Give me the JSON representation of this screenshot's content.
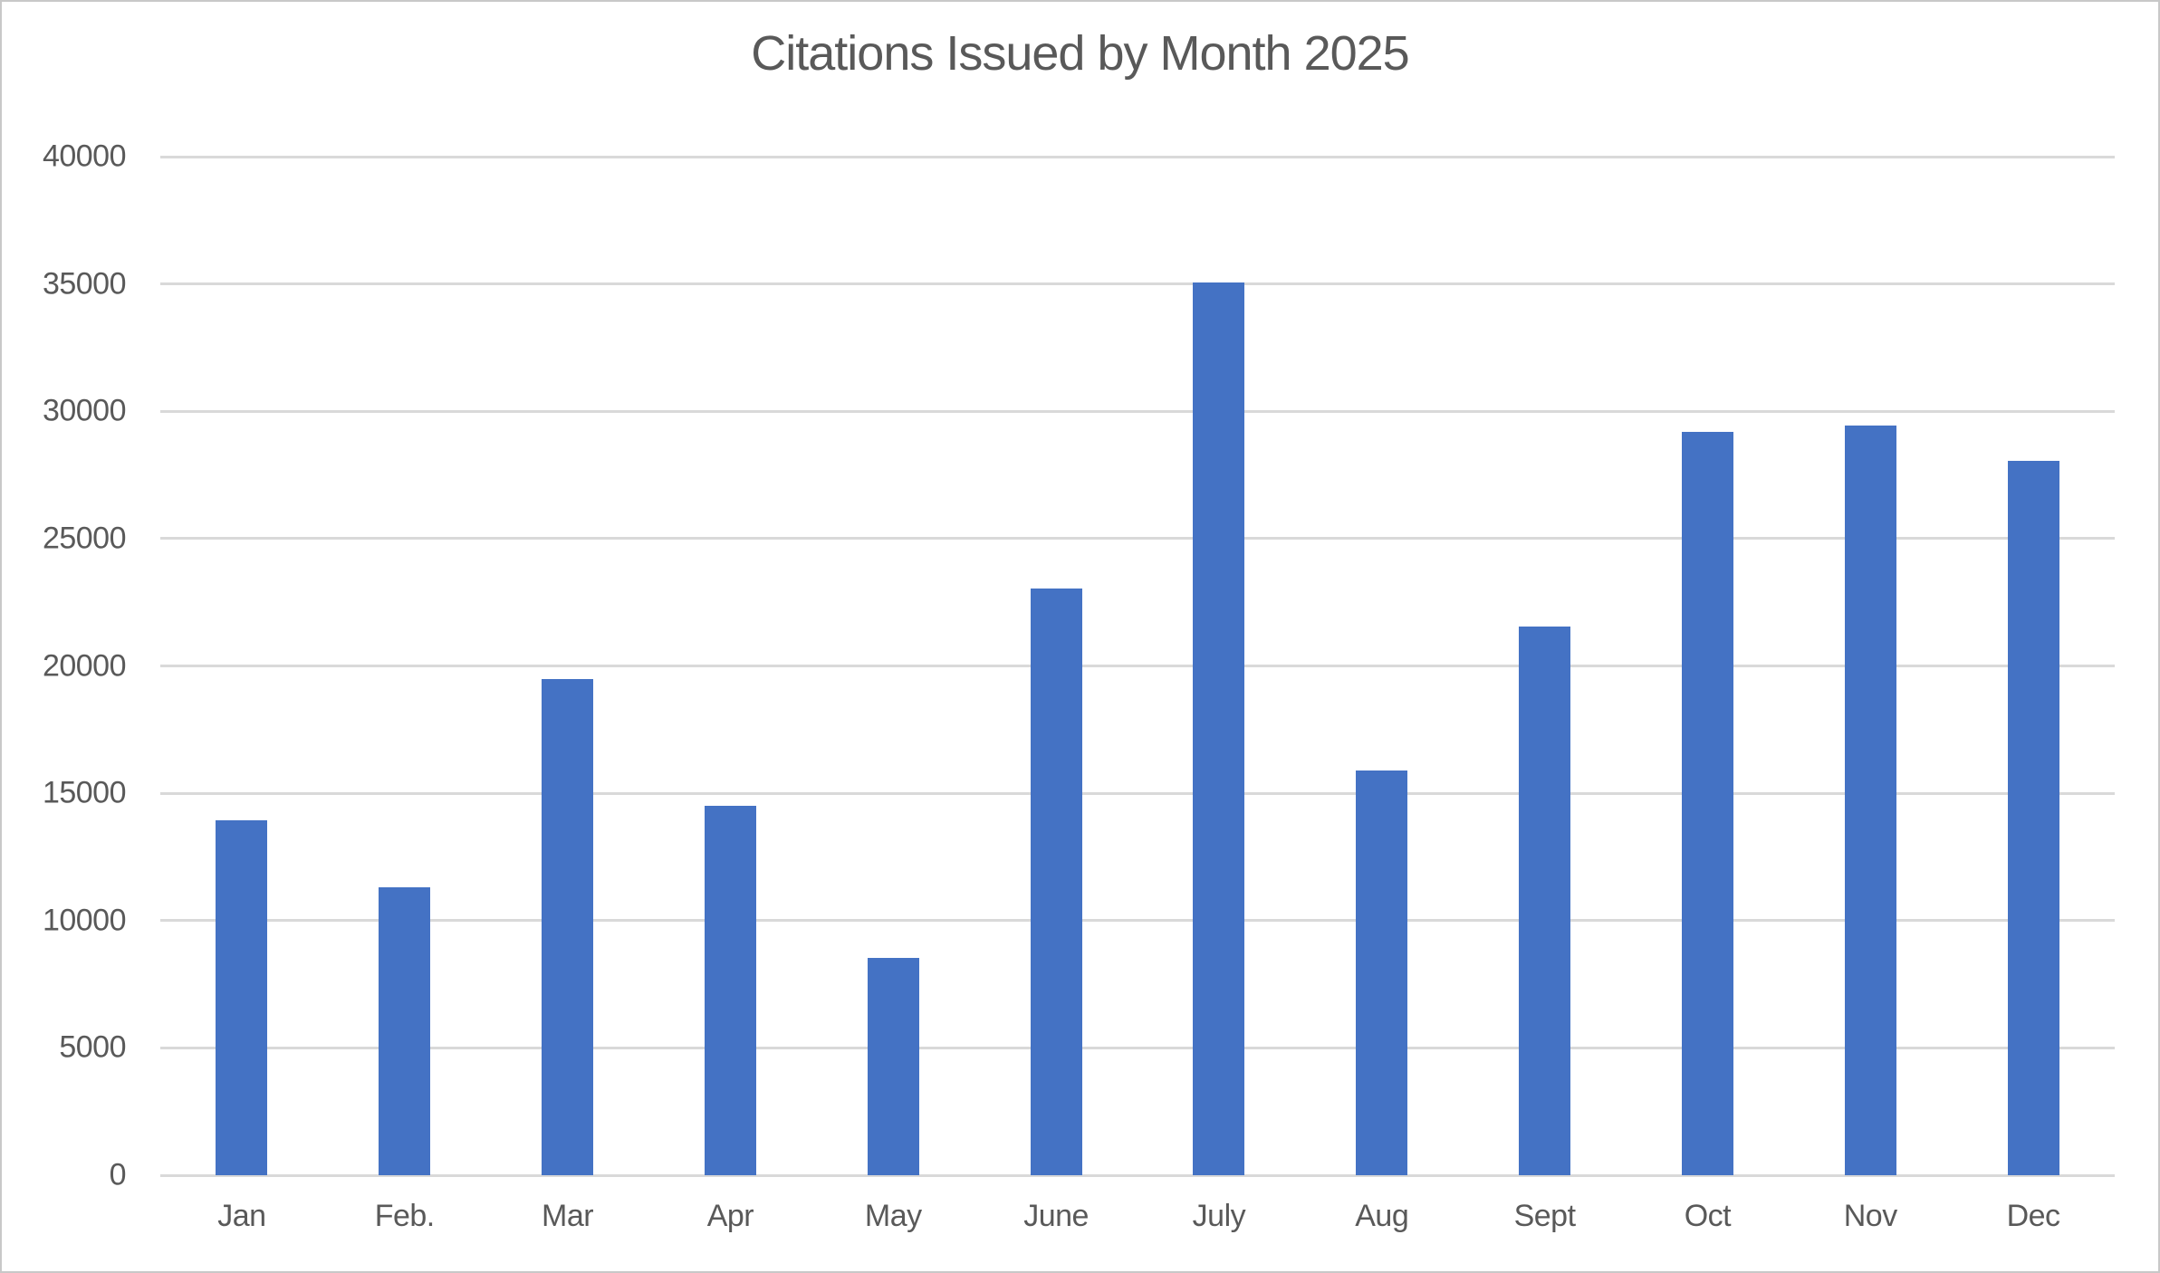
{
  "chart": {
    "title": "Citations Issued by Month 2025"
  },
  "chart_data": {
    "type": "bar",
    "title": "Citations Issued by Month 2025",
    "categories": [
      "Jan",
      "Feb.",
      "Mar",
      "Apr",
      "May",
      "June",
      "July",
      "Aug",
      "Sept",
      "Oct",
      "Nov",
      "Dec"
    ],
    "values": [
      13950,
      11300,
      19500,
      14500,
      8550,
      23050,
      35050,
      15900,
      21550,
      29200,
      29450,
      28050
    ],
    "xlabel": "",
    "ylabel": "",
    "ylim": [
      0,
      40000
    ],
    "ytick_step": 5000,
    "ytick_labels": [
      "0",
      "5000",
      "10000",
      "15000",
      "20000",
      "25000",
      "30000",
      "35000",
      "40000"
    ],
    "grid": true,
    "legend": false,
    "bar_color": "#4472C4",
    "gridline_color": "#D9D9D9",
    "text_color": "#595959",
    "frame_border_color": "#C8C8C8",
    "background_color": "#FFFFFF"
  }
}
